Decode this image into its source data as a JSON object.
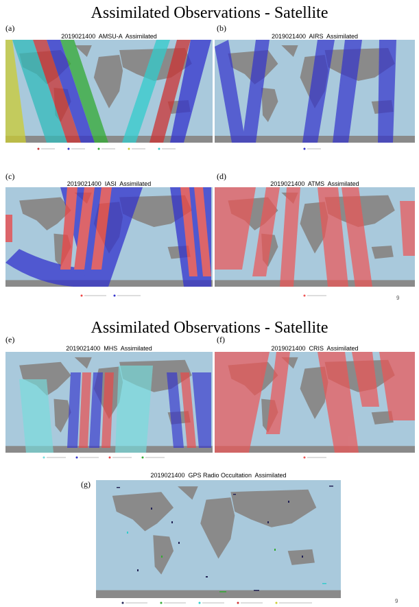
{
  "sections": [
    {
      "title": "Assimilated Observations - Satellite",
      "panels": [
        {
          "label": "(a)",
          "title": "2019021400  AMSU-A  Assimilated"
        },
        {
          "label": "(b)",
          "title": "2019021400  AIRS  Assimilated"
        },
        {
          "label": "(c)",
          "title": "2019021400  IASI  Assimilated"
        },
        {
          "label": "(d)",
          "title": "2019021400  ATMS  Assimilated"
        }
      ],
      "page_number": "9"
    },
    {
      "title": "Assimilated Observations - Satellite",
      "panels": [
        {
          "label": "(e)",
          "title": "2019021400  MHS  Assimilated"
        },
        {
          "label": "(f)",
          "title": "2019021400  CRIS  Assimilated"
        },
        {
          "label": "(g)",
          "title": "2019021400  GPS Radio Occultation  Assimilated"
        }
      ],
      "page_number": "9"
    }
  ]
}
